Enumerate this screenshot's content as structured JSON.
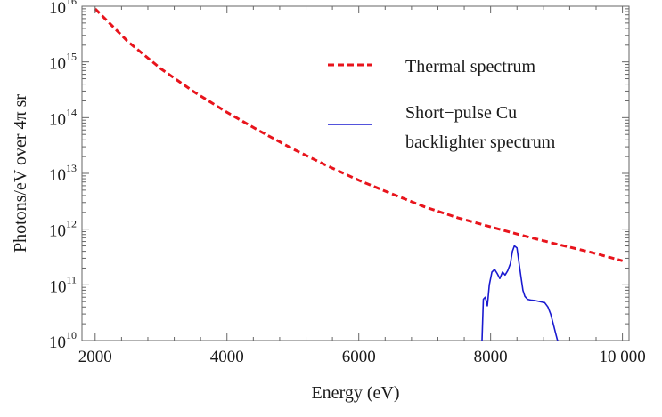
{
  "chart_data": {
    "type": "line",
    "title": "",
    "xlabel": "Energy (eV)",
    "ylabel": "Photons/eV over 4π sr",
    "xscale": "linear",
    "yscale": "log",
    "xlim": [
      1800,
      10100
    ],
    "ylim": [
      10000000000.0,
      1e+16
    ],
    "x_ticks": [
      2000,
      4000,
      6000,
      8000,
      10000
    ],
    "x_tick_labels": [
      "2000",
      "4000",
      "6000",
      "8000",
      "10 000"
    ],
    "y_ticks": [
      10000000000.0,
      100000000000.0,
      1000000000000.0,
      10000000000000.0,
      100000000000000.0,
      1000000000000000.0,
      1e+16
    ],
    "y_tick_labels": [
      {
        "base": "10",
        "exp": "10"
      },
      {
        "base": "10",
        "exp": "11"
      },
      {
        "base": "10",
        "exp": "12"
      },
      {
        "base": "10",
        "exp": "13"
      },
      {
        "base": "10",
        "exp": "14"
      },
      {
        "base": "10",
        "exp": "15"
      },
      {
        "base": "10",
        "exp": "16"
      }
    ],
    "grid": false,
    "legend_position": "top-right",
    "series": [
      {
        "name": "Thermal spectrum",
        "style": "dashed",
        "color": "#e8141c",
        "x": [
          2000,
          2500,
          3000,
          3500,
          4000,
          4500,
          5000,
          5500,
          6000,
          6500,
          7000,
          7500,
          8000,
          8500,
          9000,
          9500,
          10000
        ],
        "y": [
          9000000000000000.0,
          2300000000000000.0,
          750000000000000.0,
          290000000000000.0,
          125000000000000.0,
          57000000000000.0,
          27500000000000.0,
          14000000000000.0,
          7500000000000.0,
          4300000000000.0,
          2500000000000.0,
          1600000000000.0,
          1100000000000.0,
          760000000000.0,
          540000000000.0,
          390000000000.0,
          270000000000.0
        ]
      },
      {
        "name": "Short−pulse Cu",
        "name_line2": "backlighter spectrum",
        "style": "solid",
        "color": "#1a1ad0",
        "x": [
          7870,
          7890,
          7920,
          7950,
          7980,
          8020,
          8060,
          8100,
          8140,
          8180,
          8220,
          8260,
          8300,
          8330,
          8360,
          8400,
          8430,
          8460,
          8490,
          8520,
          8560,
          8620,
          8680,
          8750,
          8820,
          8870,
          8910,
          8950,
          8990,
          9010,
          9020
        ],
        "y": [
          10000000000.0,
          55000000000.0,
          60000000000.0,
          42000000000.0,
          100000000000.0,
          170000000000.0,
          190000000000.0,
          160000000000.0,
          130000000000.0,
          170000000000.0,
          150000000000.0,
          180000000000.0,
          240000000000.0,
          400000000000.0,
          500000000000.0,
          460000000000.0,
          250000000000.0,
          140000000000.0,
          80000000000.0,
          62000000000.0,
          55000000000.0,
          53000000000.0,
          52000000000.0,
          50000000000.0,
          48000000000.0,
          40000000000.0,
          30000000000.0,
          20000000000.0,
          13000000000.0,
          10500000000.0,
          10000000000.0
        ]
      }
    ]
  }
}
